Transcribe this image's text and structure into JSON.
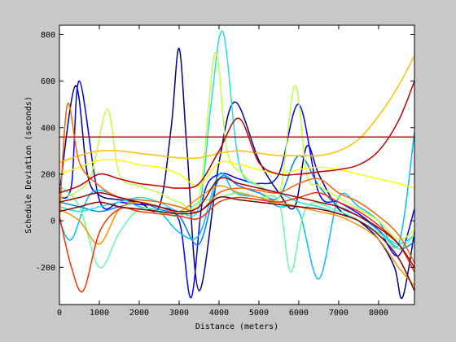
{
  "chart_data": {
    "type": "line",
    "title": "",
    "xlabel": "Distance (meters)",
    "ylabel": "Schedule Deviation (seconds)",
    "xlim": [
      0,
      8900
    ],
    "ylim": [
      -360,
      840
    ],
    "x_ticks": [
      0,
      1000,
      2000,
      3000,
      4000,
      5000,
      6000,
      7000,
      8000
    ],
    "y_ticks": [
      -200,
      0,
      200,
      400,
      600,
      800
    ],
    "x_tick_labels": [
      "0",
      "1000",
      "2000",
      "3000",
      "4000",
      "5000",
      "6000",
      "7000",
      "8000"
    ],
    "y_tick_labels": [
      "-200",
      "0",
      "200",
      "400",
      "600",
      "800"
    ],
    "grid": false,
    "legend": "none",
    "colormap": "jet",
    "series": [
      {
        "color": "#00008f",
        "x": [
          0,
          400,
          700,
          1000,
          1500,
          2000,
          2500,
          2800,
          3000,
          3200,
          3500,
          4000,
          4400,
          5000,
          5500,
          5900,
          6200,
          6500,
          7000,
          7500,
          8000,
          8400,
          8600,
          8900
        ],
        "y": [
          120,
          580,
          200,
          110,
          90,
          80,
          60,
          400,
          740,
          300,
          -300,
          250,
          510,
          260,
          120,
          60,
          320,
          200,
          50,
          0,
          -80,
          -200,
          -330,
          -50
        ]
      },
      {
        "color": "#0000ff",
        "x": [
          0,
          300,
          500,
          1000,
          1500,
          2000,
          2500,
          3000,
          3300,
          3600,
          4000,
          4500,
          5000,
          5500,
          6000,
          6500,
          7000,
          7500,
          8000,
          8500,
          8900
        ],
        "y": [
          100,
          150,
          600,
          90,
          80,
          70,
          60,
          0,
          -330,
          100,
          200,
          180,
          160,
          200,
          500,
          120,
          80,
          30,
          -40,
          -150,
          50
        ]
      },
      {
        "color": "#0080ff",
        "x": [
          0,
          500,
          1000,
          1500,
          2000,
          2500,
          3000,
          3500,
          4000,
          4500,
          5000,
          5500,
          6000,
          6500,
          7000,
          7500,
          8000,
          8500,
          8900
        ],
        "y": [
          80,
          60,
          40,
          60,
          80,
          50,
          20,
          -100,
          180,
          150,
          120,
          100,
          280,
          150,
          60,
          20,
          -40,
          -120,
          -90
        ]
      },
      {
        "color": "#00c0ff",
        "x": [
          0,
          300,
          800,
          1500,
          2000,
          2500,
          3000,
          3500,
          4000,
          4400,
          5000,
          5500,
          6000,
          6500,
          7000,
          7500,
          8000,
          8500,
          8900
        ],
        "y": [
          0,
          -80,
          120,
          100,
          60,
          40,
          -50,
          -60,
          200,
          120,
          100,
          60,
          40,
          -250,
          100,
          60,
          0,
          -100,
          380
        ]
      },
      {
        "color": "#20e0e0",
        "x": [
          0,
          500,
          1000,
          1500,
          2000,
          2500,
          3000,
          3500,
          3800,
          4100,
          4500,
          5000,
          5500,
          6000,
          6500,
          7000,
          7500,
          8000,
          8500,
          8900
        ],
        "y": [
          60,
          40,
          60,
          80,
          100,
          80,
          40,
          60,
          500,
          810,
          250,
          150,
          120,
          80,
          60,
          30,
          0,
          -50,
          -100,
          -60
        ]
      },
      {
        "color": "#60ffa0",
        "x": [
          0,
          500,
          1000,
          1500,
          2000,
          2500,
          3000,
          3500,
          4000,
          4500,
          5000,
          5500,
          5800,
          6200,
          7000,
          7500,
          8000,
          8500,
          8900
        ],
        "y": [
          150,
          60,
          -200,
          -50,
          50,
          40,
          20,
          80,
          100,
          120,
          100,
          80,
          -220,
          60,
          40,
          0,
          -50,
          -120,
          -60
        ]
      },
      {
        "color": "#c0ff40",
        "x": [
          0,
          400,
          800,
          1200,
          1500,
          2000,
          2500,
          3000,
          3500,
          3900,
          4200,
          4600,
          5000,
          5500,
          5900,
          6200,
          6500,
          7000,
          7500,
          8000,
          8500,
          8900
        ],
        "y": [
          100,
          120,
          200,
          480,
          200,
          150,
          120,
          80,
          100,
          720,
          300,
          200,
          150,
          100,
          580,
          200,
          150,
          100,
          50,
          0,
          -80,
          -40
        ]
      },
      {
        "color": "#ffff00",
        "x": [
          0,
          500,
          1000,
          1500,
          2000,
          2500,
          3000,
          3500,
          4000,
          4500,
          5000,
          5500,
          6000,
          6500,
          7000,
          7500,
          8000,
          8500,
          8900
        ],
        "y": [
          200,
          230,
          260,
          260,
          240,
          230,
          200,
          150,
          250,
          240,
          220,
          200,
          220,
          230,
          220,
          200,
          180,
          160,
          140
        ]
      },
      {
        "color": "#ffc000",
        "x": [
          0,
          500,
          1000,
          1500,
          2000,
          2500,
          3000,
          3500,
          4000,
          4500,
          5000,
          5500,
          6000,
          6500,
          7000,
          7500,
          8000,
          8500,
          8900
        ],
        "y": [
          250,
          280,
          300,
          300,
          290,
          280,
          270,
          270,
          290,
          300,
          290,
          280,
          280,
          280,
          300,
          350,
          450,
          580,
          710
        ]
      },
      {
        "color": "#ff9000",
        "x": [
          0,
          500,
          1000,
          1500,
          2000,
          2500,
          3000,
          3500,
          4000,
          4500,
          5000,
          5500,
          6000,
          6500,
          7000,
          7500,
          8000,
          8500,
          8900
        ],
        "y": [
          50,
          0,
          -100,
          50,
          80,
          60,
          40,
          100,
          150,
          120,
          100,
          80,
          60,
          40,
          20,
          -20,
          -80,
          -200,
          -280
        ]
      },
      {
        "color": "#ff6000",
        "x": [
          0,
          200,
          500,
          1000,
          1500,
          2000,
          2500,
          3000,
          3500,
          4000,
          4500,
          5000,
          5500,
          6000,
          6500,
          7000,
          7500,
          8000,
          8500,
          8900
        ],
        "y": [
          0,
          500,
          250,
          150,
          100,
          90,
          80,
          60,
          40,
          120,
          140,
          130,
          120,
          160,
          180,
          120,
          80,
          20,
          -60,
          -180
        ]
      },
      {
        "color": "#ff3000",
        "x": [
          0,
          300,
          600,
          1000,
          1500,
          2000,
          2500,
          3000,
          3500,
          4000,
          4500,
          5000,
          5500,
          6000,
          6500,
          7000,
          7500,
          8000,
          8500,
          8900
        ],
        "y": [
          20,
          -200,
          -300,
          -50,
          50,
          40,
          30,
          20,
          10,
          80,
          100,
          90,
          80,
          100,
          120,
          80,
          40,
          -20,
          -100,
          -220
        ]
      },
      {
        "color": "#e00000",
        "x": [
          0,
          400,
          1000,
          1500,
          2000,
          2500,
          3000,
          3500,
          4000,
          4500,
          5000,
          5500,
          6000,
          6500,
          7000,
          7500,
          8000,
          8500,
          8900
        ],
        "y": [
          360,
          360,
          360,
          360,
          360,
          360,
          360,
          360,
          360,
          360,
          360,
          360,
          360,
          360,
          360,
          360,
          360,
          360,
          360
        ]
      },
      {
        "color": "#c00000",
        "x": [
          0,
          500,
          1000,
          1500,
          2000,
          2500,
          3000,
          3500,
          4000,
          4500,
          5000,
          5500,
          6000,
          6500,
          7000,
          7500,
          8000,
          8500,
          8900
        ],
        "y": [
          120,
          150,
          200,
          180,
          160,
          150,
          140,
          160,
          300,
          440,
          250,
          200,
          200,
          210,
          220,
          240,
          300,
          430,
          600
        ]
      },
      {
        "color": "#a00000",
        "x": [
          0,
          500,
          1000,
          1500,
          2000,
          2500,
          3000,
          3500,
          4000,
          4500,
          5000,
          5500,
          6000,
          6500,
          7000,
          7500,
          8000,
          8500,
          8900
        ],
        "y": [
          80,
          100,
          120,
          100,
          80,
          60,
          40,
          60,
          180,
          160,
          140,
          120,
          100,
          80,
          60,
          20,
          -30,
          -100,
          -200
        ]
      },
      {
        "color": "#800000",
        "x": [
          0,
          500,
          1000,
          1500,
          2000,
          2500,
          3000,
          3500,
          4000,
          4500,
          5000,
          5500,
          6000,
          6500,
          7000,
          7500,
          8000,
          8500,
          8900
        ],
        "y": [
          40,
          60,
          80,
          60,
          50,
          40,
          30,
          40,
          100,
          90,
          80,
          70,
          60,
          50,
          30,
          0,
          -60,
          -160,
          -300
        ]
      }
    ]
  }
}
